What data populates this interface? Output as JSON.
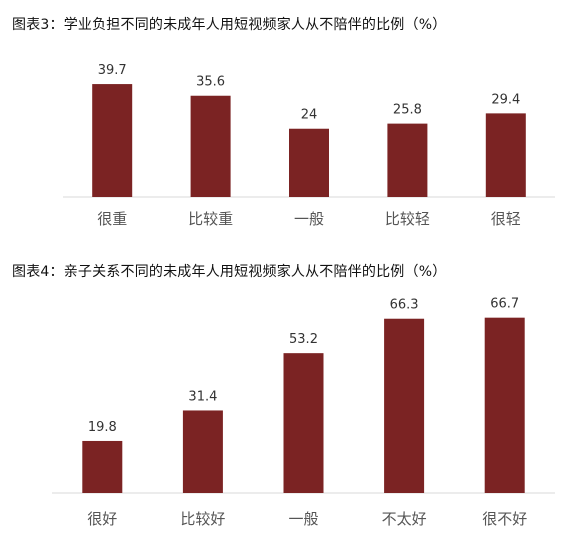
{
  "colors": {
    "bar": "#7b2323",
    "axis": "#d9d9d9"
  },
  "chart_data": [
    {
      "type": "bar",
      "title": "图表3：学业负担不同的未成年人用短视频家人从不陪伴的比例（%）",
      "categories": [
        "很重",
        "比较重",
        "一般",
        "比较轻",
        "很轻"
      ],
      "values": [
        39.7,
        35.6,
        24,
        25.8,
        29.4
      ],
      "value_labels": [
        "39.7",
        "35.6",
        "24",
        "25.8",
        "29.4"
      ],
      "xlabel": "",
      "ylabel": "",
      "ylim": [
        0,
        45
      ],
      "grid": false,
      "legend": "none"
    },
    {
      "type": "bar",
      "title": "图表4：亲子关系不同的未成年人用短视频家人从不陪伴的比例（%）",
      "categories": [
        "很好",
        "比较好",
        "一般",
        "不太好",
        "很不好"
      ],
      "values": [
        19.8,
        31.4,
        53.2,
        66.3,
        66.7
      ],
      "value_labels": [
        "19.8",
        "31.4",
        "53.2",
        "66.3",
        "66.7"
      ],
      "xlabel": "",
      "ylabel": "",
      "ylim": [
        0,
        70
      ],
      "grid": false,
      "legend": "none"
    }
  ]
}
